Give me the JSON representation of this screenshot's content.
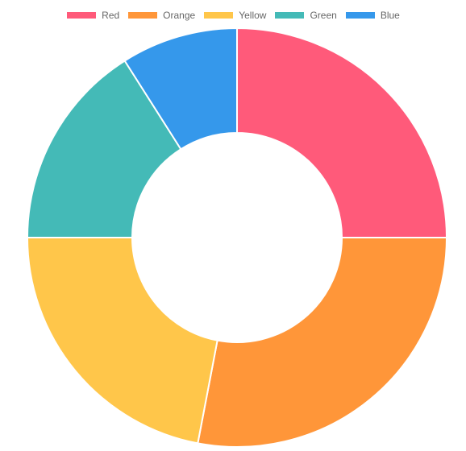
{
  "chart_data": {
    "type": "pie",
    "variant": "doughnut",
    "title": "",
    "legend": {
      "position": "top-center",
      "entries": [
        "Red",
        "Orange",
        "Yellow",
        "Green",
        "Blue"
      ]
    },
    "categories": [
      "Red",
      "Orange",
      "Yellow",
      "Green",
      "Blue"
    ],
    "values": [
      25,
      28,
      22,
      16,
      9
    ],
    "colors": [
      "#ff5a7a",
      "#ff9639",
      "#ffc64a",
      "#44bab7",
      "#3598eb"
    ],
    "border_color": "#ffffff"
  }
}
